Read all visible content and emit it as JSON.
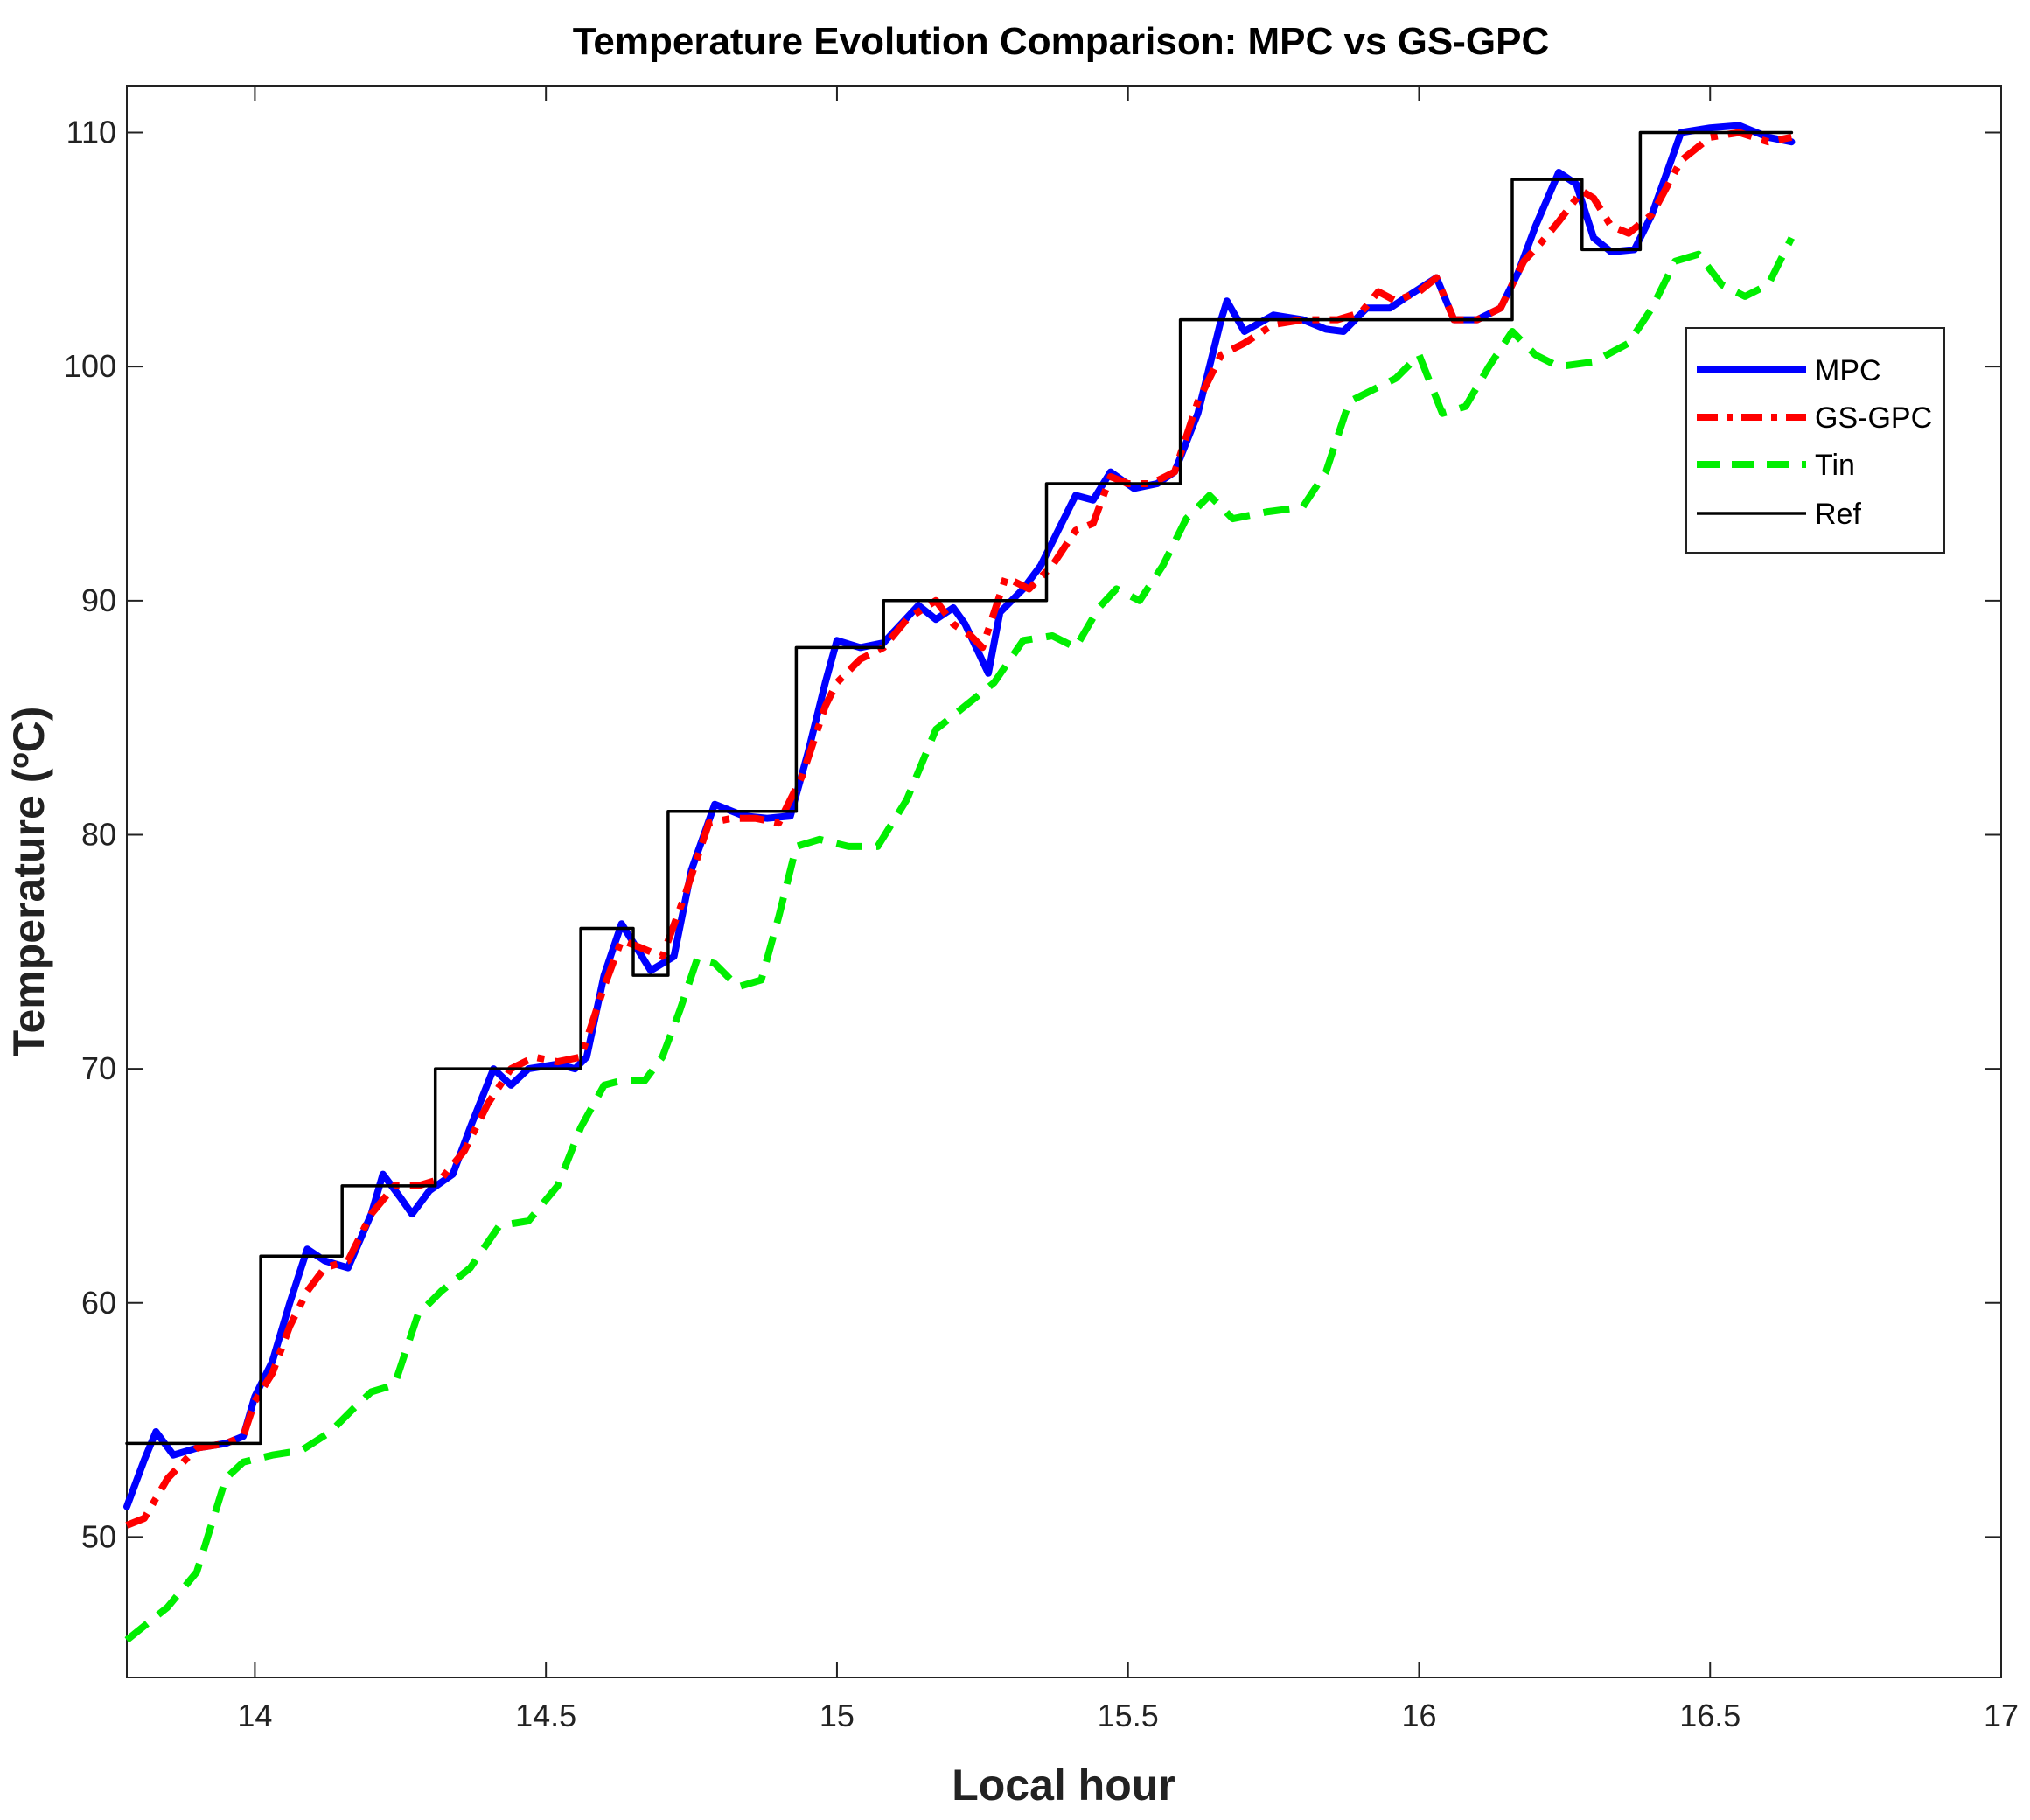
{
  "chart_data": {
    "type": "line",
    "title": "Temperature Evolution Comparison: MPC vs GS-GPC",
    "xlabel": "Local hour",
    "ylabel": "Temperature (ºC)",
    "xlim": [
      13.78,
      17
    ],
    "ylim": [
      44,
      112
    ],
    "xticks": [
      14,
      14.5,
      15,
      15.5,
      16,
      16.5,
      17
    ],
    "yticks": [
      50,
      60,
      70,
      80,
      90,
      100,
      110
    ],
    "xtick_labels": [
      "14",
      "14.5",
      "15",
      "15.5",
      "16",
      "16.5",
      "17"
    ],
    "ytick_labels": [
      "50",
      "60",
      "70",
      "80",
      "90",
      "100",
      "110"
    ],
    "legend_position": "top-right",
    "grid": false,
    "series": [
      {
        "name": "MPC",
        "color": "#0000ff",
        "style": "solid",
        "points": [
          [
            13.78,
            51.3
          ],
          [
            13.81,
            53.3
          ],
          [
            13.83,
            54.5
          ],
          [
            13.86,
            53.5
          ],
          [
            13.9,
            53.8
          ],
          [
            13.95,
            54.0
          ],
          [
            13.98,
            54.3
          ],
          [
            14.0,
            56.0
          ],
          [
            14.03,
            57.5
          ],
          [
            14.06,
            60.0
          ],
          [
            14.09,
            62.3
          ],
          [
            14.12,
            61.8
          ],
          [
            14.16,
            61.5
          ],
          [
            14.2,
            63.8
          ],
          [
            14.22,
            65.5
          ],
          [
            14.25,
            64.5
          ],
          [
            14.27,
            63.8
          ],
          [
            14.3,
            64.8
          ],
          [
            14.34,
            65.5
          ],
          [
            14.37,
            67.5
          ],
          [
            14.41,
            70.0
          ],
          [
            14.44,
            69.3
          ],
          [
            14.47,
            70.0
          ],
          [
            14.52,
            70.2
          ],
          [
            14.55,
            70.0
          ],
          [
            14.57,
            70.5
          ],
          [
            14.6,
            74.0
          ],
          [
            14.63,
            76.2
          ],
          [
            14.66,
            75.0
          ],
          [
            14.68,
            74.2
          ],
          [
            14.72,
            74.8
          ],
          [
            14.75,
            78.5
          ],
          [
            14.79,
            81.3
          ],
          [
            14.84,
            80.8
          ],
          [
            14.88,
            80.7
          ],
          [
            14.92,
            80.8
          ],
          [
            14.95,
            83.5
          ],
          [
            14.98,
            86.5
          ],
          [
            15.0,
            88.3
          ],
          [
            15.04,
            88.0
          ],
          [
            15.08,
            88.2
          ],
          [
            15.11,
            89.0
          ],
          [
            15.14,
            89.8
          ],
          [
            15.17,
            89.2
          ],
          [
            15.2,
            89.7
          ],
          [
            15.22,
            89.0
          ],
          [
            15.26,
            86.9
          ],
          [
            15.28,
            89.5
          ],
          [
            15.32,
            90.5
          ],
          [
            15.35,
            91.5
          ],
          [
            15.38,
            93.0
          ],
          [
            15.41,
            94.5
          ],
          [
            15.44,
            94.3
          ],
          [
            15.47,
            95.5
          ],
          [
            15.51,
            94.8
          ],
          [
            15.55,
            95.0
          ],
          [
            15.58,
            95.5
          ],
          [
            15.62,
            98.0
          ],
          [
            15.66,
            102.0
          ],
          [
            15.67,
            102.8
          ],
          [
            15.7,
            101.5
          ],
          [
            15.75,
            102.2
          ],
          [
            15.8,
            102.0
          ],
          [
            15.84,
            101.6
          ],
          [
            15.87,
            101.5
          ],
          [
            15.91,
            102.5
          ],
          [
            15.95,
            102.5
          ],
          [
            15.98,
            103.0
          ],
          [
            16.03,
            103.8
          ],
          [
            16.06,
            102.0
          ],
          [
            16.1,
            102.0
          ],
          [
            16.14,
            102.5
          ],
          [
            16.17,
            104.0
          ],
          [
            16.2,
            106.0
          ],
          [
            16.24,
            108.3
          ],
          [
            16.27,
            107.8
          ],
          [
            16.3,
            105.5
          ],
          [
            16.33,
            104.9
          ],
          [
            16.37,
            105.0
          ],
          [
            16.4,
            106.5
          ],
          [
            16.45,
            110.0
          ],
          [
            16.5,
            110.2
          ],
          [
            16.55,
            110.3
          ],
          [
            16.6,
            109.8
          ],
          [
            16.64,
            109.6
          ]
        ]
      },
      {
        "name": "GS-GPC",
        "color": "#ff0000",
        "style": "dashdot",
        "points": [
          [
            13.78,
            50.5
          ],
          [
            13.81,
            50.8
          ],
          [
            13.85,
            52.5
          ],
          [
            13.9,
            53.8
          ],
          [
            13.95,
            54.0
          ],
          [
            13.98,
            54.3
          ],
          [
            14.0,
            55.8
          ],
          [
            14.03,
            57.0
          ],
          [
            14.06,
            59.0
          ],
          [
            14.09,
            60.5
          ],
          [
            14.12,
            61.5
          ],
          [
            14.16,
            61.8
          ],
          [
            14.2,
            63.8
          ],
          [
            14.24,
            65.0
          ],
          [
            14.28,
            65.0
          ],
          [
            14.32,
            65.3
          ],
          [
            14.36,
            66.5
          ],
          [
            14.4,
            68.5
          ],
          [
            14.44,
            70.0
          ],
          [
            14.48,
            70.5
          ],
          [
            14.52,
            70.3
          ],
          [
            14.56,
            70.5
          ],
          [
            14.6,
            73.5
          ],
          [
            14.63,
            75.5
          ],
          [
            14.66,
            75.2
          ],
          [
            14.7,
            74.8
          ],
          [
            14.74,
            77.5
          ],
          [
            14.78,
            80.5
          ],
          [
            14.82,
            80.7
          ],
          [
            14.86,
            80.7
          ],
          [
            14.9,
            80.5
          ],
          [
            14.94,
            82.5
          ],
          [
            14.98,
            85.5
          ],
          [
            15.0,
            86.5
          ],
          [
            15.04,
            87.5
          ],
          [
            15.08,
            88.0
          ],
          [
            15.12,
            89.2
          ],
          [
            15.17,
            90.0
          ],
          [
            15.2,
            89.0
          ],
          [
            15.23,
            88.5
          ],
          [
            15.25,
            88.0
          ],
          [
            15.27,
            89.5
          ],
          [
            15.29,
            91.0
          ],
          [
            15.33,
            90.5
          ],
          [
            15.37,
            91.5
          ],
          [
            15.41,
            93.0
          ],
          [
            15.44,
            93.3
          ],
          [
            15.47,
            95.3
          ],
          [
            15.5,
            95.0
          ],
          [
            15.54,
            95.0
          ],
          [
            15.58,
            95.5
          ],
          [
            15.62,
            98.5
          ],
          [
            15.66,
            100.5
          ],
          [
            15.7,
            101.0
          ],
          [
            15.75,
            101.8
          ],
          [
            15.8,
            102.0
          ],
          [
            15.86,
            102.0
          ],
          [
            15.9,
            102.3
          ],
          [
            15.93,
            103.2
          ],
          [
            15.96,
            102.8
          ],
          [
            16.0,
            103.2
          ],
          [
            16.03,
            103.8
          ],
          [
            16.06,
            102.0
          ],
          [
            16.1,
            102.0
          ],
          [
            16.14,
            102.5
          ],
          [
            16.18,
            104.5
          ],
          [
            16.21,
            105.3
          ],
          [
            16.24,
            106.2
          ],
          [
            16.28,
            107.5
          ],
          [
            16.3,
            107.2
          ],
          [
            16.33,
            106.0
          ],
          [
            16.36,
            105.7
          ],
          [
            16.4,
            106.5
          ],
          [
            16.45,
            108.8
          ],
          [
            16.5,
            109.8
          ],
          [
            16.55,
            110.0
          ],
          [
            16.6,
            109.6
          ],
          [
            16.64,
            109.8
          ]
        ]
      },
      {
        "name": "Tin",
        "color": "#00ee00",
        "style": "dashed",
        "points": [
          [
            13.78,
            45.6
          ],
          [
            13.85,
            47.0
          ],
          [
            13.9,
            48.5
          ],
          [
            13.95,
            52.5
          ],
          [
            13.98,
            53.2
          ],
          [
            14.03,
            53.5
          ],
          [
            14.08,
            53.7
          ],
          [
            14.13,
            54.5
          ],
          [
            14.17,
            55.5
          ],
          [
            14.2,
            56.2
          ],
          [
            14.24,
            56.5
          ],
          [
            14.28,
            59.5
          ],
          [
            14.32,
            60.5
          ],
          [
            14.37,
            61.5
          ],
          [
            14.42,
            63.3
          ],
          [
            14.47,
            63.5
          ],
          [
            14.52,
            65.0
          ],
          [
            14.56,
            67.5
          ],
          [
            14.6,
            69.3
          ],
          [
            14.63,
            69.5
          ],
          [
            14.67,
            69.5
          ],
          [
            14.7,
            70.5
          ],
          [
            14.73,
            72.5
          ],
          [
            14.76,
            74.7
          ],
          [
            14.79,
            74.5
          ],
          [
            14.83,
            73.5
          ],
          [
            14.87,
            73.8
          ],
          [
            14.9,
            76.5
          ],
          [
            14.93,
            79.5
          ],
          [
            14.97,
            79.8
          ],
          [
            15.02,
            79.5
          ],
          [
            15.07,
            79.5
          ],
          [
            15.12,
            81.5
          ],
          [
            15.17,
            84.5
          ],
          [
            15.22,
            85.5
          ],
          [
            15.27,
            86.5
          ],
          [
            15.32,
            88.3
          ],
          [
            15.37,
            88.5
          ],
          [
            15.41,
            88.0
          ],
          [
            15.45,
            89.7
          ],
          [
            15.48,
            90.5
          ],
          [
            15.52,
            90.0
          ],
          [
            15.56,
            91.5
          ],
          [
            15.6,
            93.5
          ],
          [
            15.64,
            94.5
          ],
          [
            15.68,
            93.5
          ],
          [
            15.74,
            93.8
          ],
          [
            15.8,
            94.0
          ],
          [
            15.84,
            95.5
          ],
          [
            15.88,
            98.5
          ],
          [
            15.92,
            99.0
          ],
          [
            15.96,
            99.5
          ],
          [
            16.0,
            100.5
          ],
          [
            16.04,
            98.0
          ],
          [
            16.08,
            98.3
          ],
          [
            16.12,
            100.0
          ],
          [
            16.16,
            101.5
          ],
          [
            16.2,
            100.5
          ],
          [
            16.24,
            100.0
          ],
          [
            16.3,
            100.2
          ],
          [
            16.36,
            101.0
          ],
          [
            16.4,
            102.5
          ],
          [
            16.44,
            104.5
          ],
          [
            16.48,
            104.8
          ],
          [
            16.52,
            103.5
          ],
          [
            16.56,
            103.0
          ],
          [
            16.6,
            103.5
          ],
          [
            16.64,
            105.5
          ]
        ]
      },
      {
        "name": "Ref",
        "color": "#000000",
        "style": "solid",
        "points": [
          [
            13.78,
            54
          ],
          [
            14.01,
            54
          ],
          [
            14.01,
            62
          ],
          [
            14.15,
            62
          ],
          [
            14.15,
            65
          ],
          [
            14.31,
            65
          ],
          [
            14.31,
            70
          ],
          [
            14.56,
            70
          ],
          [
            14.56,
            76
          ],
          [
            14.65,
            76
          ],
          [
            14.65,
            74
          ],
          [
            14.71,
            74
          ],
          [
            14.71,
            81
          ],
          [
            14.93,
            81
          ],
          [
            14.93,
            88
          ],
          [
            15.08,
            88
          ],
          [
            15.08,
            90
          ],
          [
            15.36,
            90
          ],
          [
            15.36,
            95
          ],
          [
            15.59,
            95
          ],
          [
            15.59,
            102
          ],
          [
            16.16,
            102
          ],
          [
            16.16,
            108
          ],
          [
            16.28,
            108
          ],
          [
            16.28,
            105
          ],
          [
            16.38,
            105
          ],
          [
            16.38,
            110
          ],
          [
            16.64,
            110
          ]
        ]
      }
    ]
  }
}
